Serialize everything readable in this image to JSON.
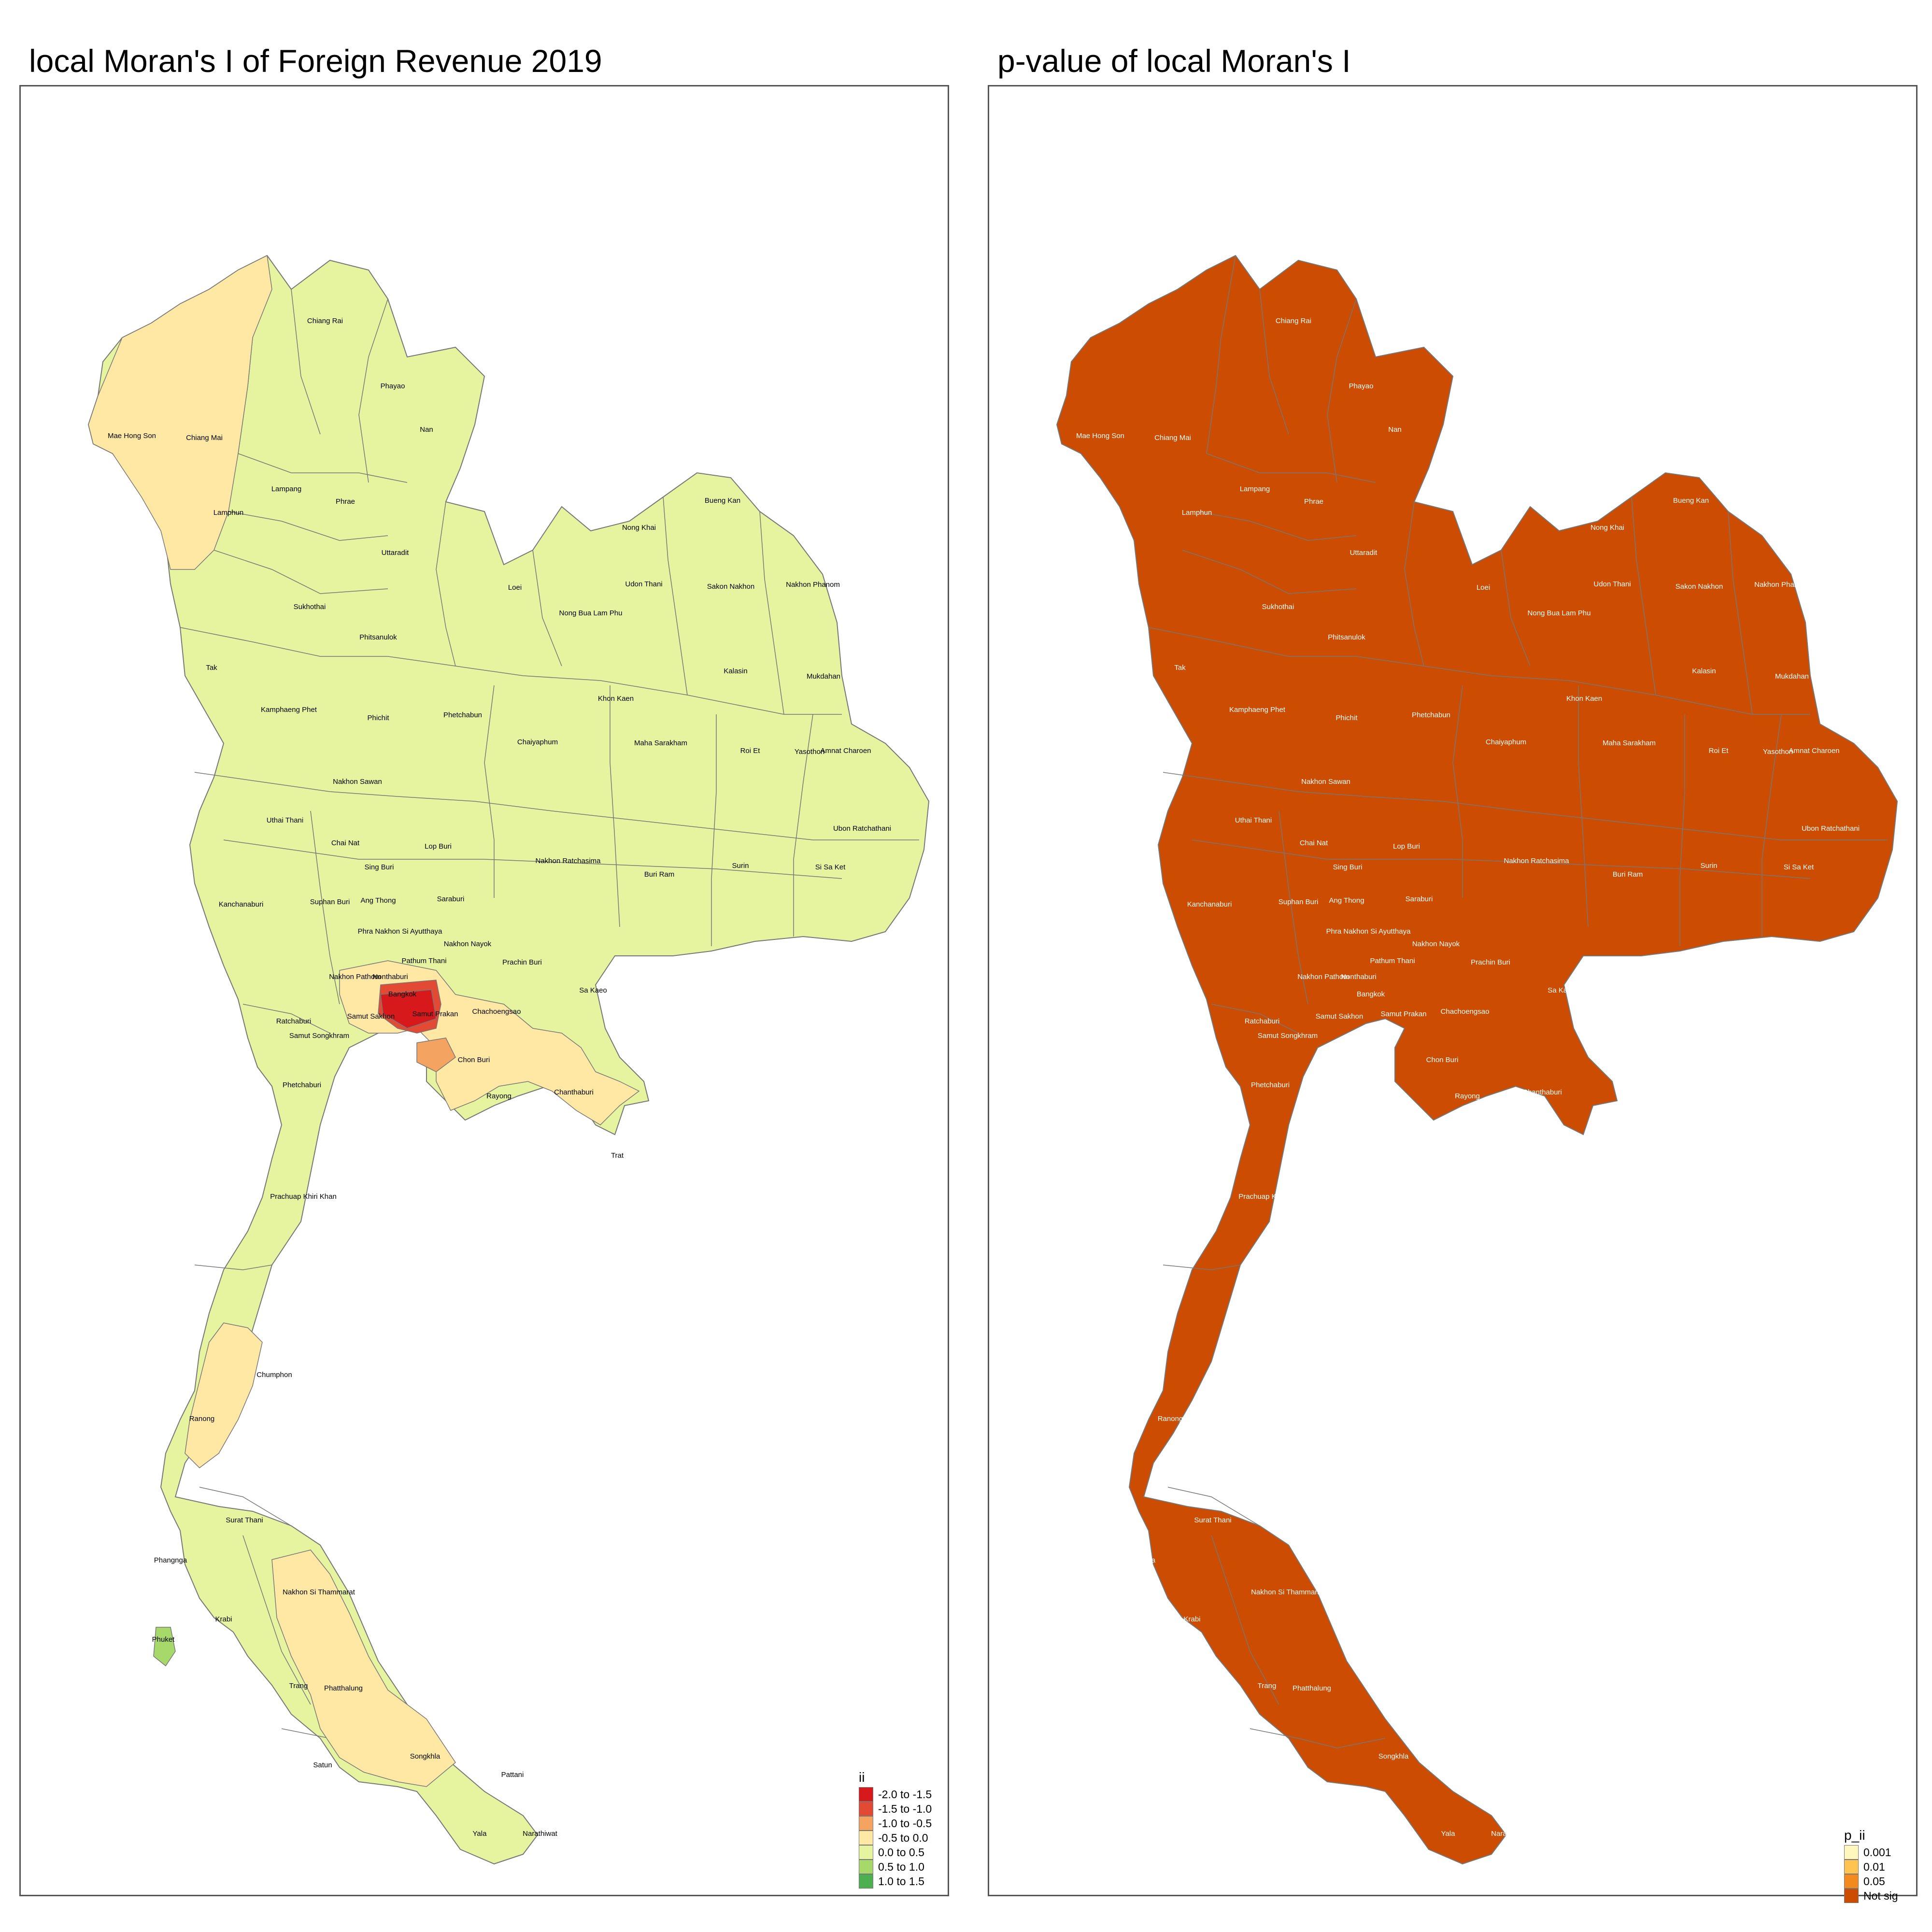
{
  "left_panel": {
    "title": "local Moran's I of Foreign Revenue 2019",
    "legend": {
      "title": "ii",
      "items": [
        {
          "label": "-2.0 to -1.5",
          "color": "#d7191c"
        },
        {
          "label": "-1.5 to -1.0",
          "color": "#e34a33"
        },
        {
          "label": "-1.0 to -0.5",
          "color": "#f4a460"
        },
        {
          "label": "-0.5 to 0.0",
          "color": "#fee8a4"
        },
        {
          "label": "0.0 to 0.5",
          "color": "#e6f4a0"
        },
        {
          "label": "0.5 to 1.0",
          "color": "#a6d96a"
        },
        {
          "label": "1.0 to 1.5",
          "color": "#4caf50"
        }
      ]
    }
  },
  "right_panel": {
    "title": "p-value of local Moran's I",
    "legend": {
      "title": "p_ii",
      "items": [
        {
          "label": "0.001",
          "color": "#fff7bc"
        },
        {
          "label": "0.01",
          "color": "#fec44f"
        },
        {
          "label": "0.05",
          "color": "#f28a1e"
        },
        {
          "label": "Not sig",
          "color": "#cc4c02"
        }
      ]
    }
  },
  "map_outline_color": "#777777",
  "province_labels": [
    "Chiang Rai",
    "Phayao",
    "Nan",
    "Mae Hong Son",
    "Chiang Mai",
    "Lampang",
    "Phrae",
    "Lamphun",
    "Nong Khai",
    "Bueng Kan",
    "Uttaradit",
    "Loei",
    "Udon Thani",
    "Sakon Nakhon",
    "Nakhon Phanom",
    "Sukhothai",
    "Nong Bua Lam Phu",
    "Phitsanulok",
    "Tak",
    "Kalasin",
    "Mukdahan",
    "Khon Kaen",
    "Kamphaeng Phet",
    "Phichit",
    "Phetchabun",
    "Chaiyaphum",
    "Maha Sarakham",
    "Roi Et",
    "Yasothon",
    "Amnat Charoen",
    "Nakhon Sawan",
    "Uthai Thani",
    "Ubon Ratchathani",
    "Chai Nat",
    "Lop Buri",
    "Sing Buri",
    "Nakhon Ratchasima",
    "Buri Ram",
    "Surin",
    "Si Sa Ket",
    "Kanchanaburi",
    "Suphan Buri",
    "Ang Thong",
    "Saraburi",
    "Phra Nakhon Si Ayutthaya",
    "Nakhon Nayok",
    "Pathum Thani",
    "Prachin Buri",
    "Nakhon Pathom",
    "Nonthaburi",
    "Bangkok",
    "Sa Kaeo",
    "Samut Sakhon",
    "Samut Prakan",
    "Chachoengsao",
    "Ratchaburi",
    "Samut Songkhram",
    "Chon Buri",
    "Phetchaburi",
    "Rayong",
    "Chanthaburi",
    "Trat",
    "Prachuap Khiri Khan",
    "Chumphon",
    "Ranong",
    "Surat Thani",
    "Phangnga",
    "Nakhon Si Thammarat",
    "Krabi",
    "Phuket",
    "Trang",
    "Phatthalung",
    "Satun",
    "Songkhla",
    "Pattani",
    "Yala",
    "Narathiwat"
  ]
}
